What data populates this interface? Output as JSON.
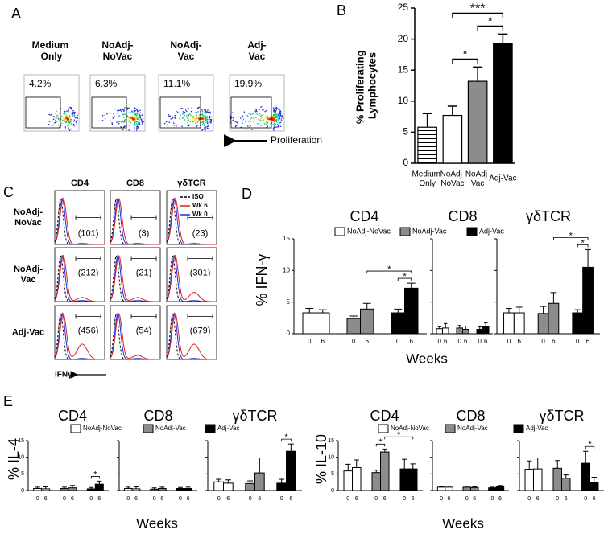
{
  "panel_a": {
    "label": "A",
    "plots": [
      {
        "title": "Medium Only",
        "percent": "4.2%"
      },
      {
        "title": "NoAdj-NoVac",
        "percent": "6.3%"
      },
      {
        "title": "NoAdj-Vac",
        "percent": "11.1%"
      },
      {
        "title": "Adj-Vac",
        "percent": "19.9%"
      }
    ],
    "arrow_label": "Proliferation"
  },
  "panel_c": {
    "label": "C",
    "columns": [
      "CD4",
      "CD8",
      "γδTCR"
    ],
    "rows": [
      {
        "label": "NoAdj-NoVac",
        "counts": [
          "(101)",
          "(3)",
          "(23)"
        ]
      },
      {
        "label": "NoAdj-Vac",
        "counts": [
          "(212)",
          "(21)",
          "(301)"
        ]
      },
      {
        "label": "Adj-Vac",
        "counts": [
          "(456)",
          "(54)",
          "(679)"
        ]
      }
    ],
    "legend": [
      {
        "name": "ISO",
        "color": "#000000"
      },
      {
        "name": "Wk 6",
        "color": "#e02020"
      },
      {
        "name": "Wk 0",
        "color": "#2030e0"
      }
    ],
    "x_label": "IFNγ"
  },
  "chart_data": [
    {
      "type": "bar",
      "label": "B",
      "ylabel": "% Proliferating Lymphocytes",
      "categories": [
        "Medium Only",
        "NoAdj-NoVac",
        "NoAdj-Vac",
        "Adj-Vac"
      ],
      "values": [
        5.8,
        7.7,
        13.2,
        19.3
      ],
      "errors": [
        2.2,
        1.5,
        2.3,
        1.5
      ],
      "colors": [
        "#ffffff",
        "#ffffff",
        "#8c8c8c",
        "#000000"
      ],
      "hatch": [
        true,
        false,
        false,
        false
      ],
      "ylim": [
        0,
        25
      ],
      "yticks": [
        0,
        5,
        10,
        15,
        20,
        25
      ],
      "significance": [
        {
          "text": "*",
          "from": 1,
          "to": 2
        },
        {
          "text": "*",
          "from": 2,
          "to": 3
        },
        {
          "text": "***",
          "from": 1,
          "to": 3
        }
      ]
    },
    {
      "type": "grouped_bar",
      "label": "D",
      "ylabel": "% IFN-γ",
      "xlabel": "Weeks",
      "categories": [
        "0",
        "6"
      ],
      "legend": [
        {
          "name": "NoAdj-NoVac",
          "color": "#ffffff"
        },
        {
          "name": "NoAdj-Vac",
          "color": "#8c8c8c"
        },
        {
          "name": "Adj-Vac",
          "color": "#000000"
        }
      ],
      "ylim": [
        0,
        15
      ],
      "yticks": [
        0,
        5,
        10,
        15
      ],
      "panels": [
        {
          "title": "CD4",
          "values": [
            [
              3.3,
              3.3
            ],
            [
              2.4,
              3.9
            ],
            [
              3.3,
              7.2
            ]
          ],
          "errors": [
            [
              0.7,
              0.5
            ],
            [
              0.4,
              0.9
            ],
            [
              0.6,
              0.8
            ]
          ],
          "significance": [
            {
              "text": "*",
              "from": 4,
              "to": 5
            },
            {
              "text": "*",
              "from": 3,
              "to": 5
            }
          ]
        },
        {
          "title": "CD8",
          "values": [
            [
              0.8,
              0.9
            ],
            [
              0.9,
              0.7
            ],
            [
              0.7,
              1.1
            ]
          ],
          "errors": [
            [
              0.3,
              0.7
            ],
            [
              0.4,
              0.5
            ],
            [
              0.4,
              0.6
            ]
          ],
          "significance": []
        },
        {
          "title": "γδTCR",
          "values": [
            [
              3.3,
              3.3
            ],
            [
              3.2,
              4.8
            ],
            [
              3.3,
              10.5
            ]
          ],
          "errors": [
            [
              0.7,
              0.9
            ],
            [
              1.1,
              1.7
            ],
            [
              0.5,
              2.8
            ]
          ],
          "significance": [
            {
              "text": "*",
              "from": 4,
              "to": 5
            },
            {
              "text": "*",
              "from": 3,
              "to": 5
            }
          ]
        }
      ]
    },
    {
      "type": "grouped_bar",
      "label": "E",
      "ylabel": "% IL-4",
      "xlabel": "Weeks",
      "categories": [
        "0",
        "6"
      ],
      "legend": [
        {
          "name": "NoAdj-NoVac",
          "color": "#ffffff"
        },
        {
          "name": "NoAdj-Vac",
          "color": "#8c8c8c"
        },
        {
          "name": "Adj-Vac",
          "color": "#000000"
        }
      ],
      "ylim": [
        0,
        15
      ],
      "yticks": [
        0,
        5,
        10,
        15
      ],
      "panels": [
        {
          "title": "CD4",
          "values": [
            [
              0.6,
              0.5
            ],
            [
              0.6,
              0.8
            ],
            [
              0.5,
              1.9
            ]
          ],
          "errors": [
            [
              0.4,
              0.6
            ],
            [
              0.4,
              0.7
            ],
            [
              0.4,
              0.9
            ]
          ],
          "significance": [
            {
              "text": "*",
              "from": 4,
              "to": 5
            }
          ]
        },
        {
          "title": "CD8",
          "values": [
            [
              0.6,
              0.5
            ],
            [
              0.4,
              0.6
            ],
            [
              0.6,
              0.6
            ]
          ],
          "errors": [
            [
              0.4,
              0.6
            ],
            [
              0.4,
              0.4
            ],
            [
              0.3,
              0.4
            ]
          ],
          "significance": []
        },
        {
          "title": "γδTCR",
          "values": [
            [
              2.6,
              2.2
            ],
            [
              2.1,
              5.3
            ],
            [
              2.2,
              11.8
            ]
          ],
          "errors": [
            [
              0.8,
              1.0
            ],
            [
              0.8,
              4.5
            ],
            [
              1.2,
              2.2
            ]
          ],
          "significance": [
            {
              "text": "*",
              "from": 4,
              "to": 5
            }
          ]
        }
      ]
    },
    {
      "type": "grouped_bar",
      "ylabel": "% IL-10",
      "xlabel": "Weeks",
      "categories": [
        "0",
        "6"
      ],
      "legend": [
        {
          "name": "NoAdj-NoVac",
          "color": "#ffffff"
        },
        {
          "name": "NoAdj-Vac",
          "color": "#8c8c8c"
        },
        {
          "name": "Adj-Vac",
          "color": "#000000"
        }
      ],
      "ylim": [
        0,
        15
      ],
      "yticks": [
        0,
        5,
        10,
        15
      ],
      "panels": [
        {
          "title": "CD4",
          "values": [
            [
              5.9,
              6.9
            ],
            [
              5.4,
              11.6
            ],
            [
              6.5,
              6.5
            ]
          ],
          "errors": [
            [
              2.0,
              2.3
            ],
            [
              0.7,
              0.9
            ],
            [
              2.9,
              1.5
            ]
          ],
          "significance": [
            {
              "text": "*",
              "from": 2,
              "to": 3
            },
            {
              "text": "*",
              "from": 3,
              "to": 5
            }
          ]
        },
        {
          "title": "CD8",
          "values": [
            [
              1.0,
              1.0
            ],
            [
              1.0,
              0.9
            ],
            [
              0.8,
              1.2
            ]
          ],
          "errors": [
            [
              0.2,
              0.3
            ],
            [
              0.3,
              0.2
            ],
            [
              0.2,
              0.3
            ]
          ],
          "significance": []
        },
        {
          "title": "γδTCR",
          "values": [
            [
              6.4,
              6.5
            ],
            [
              6.7,
              3.7
            ],
            [
              8.2,
              2.4
            ]
          ],
          "errors": [
            [
              2.5,
              3.3
            ],
            [
              2.3,
              1.0
            ],
            [
              3.6,
              1.6
            ]
          ],
          "significance": [
            {
              "text": "*",
              "from": 4,
              "to": 5
            }
          ]
        }
      ]
    }
  ]
}
